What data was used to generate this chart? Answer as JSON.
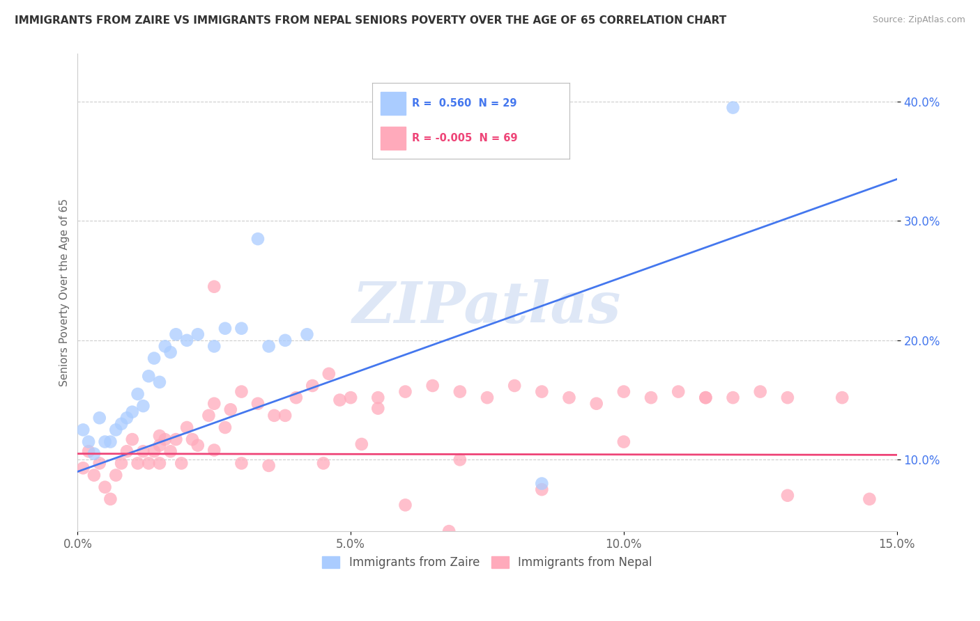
{
  "title": "IMMIGRANTS FROM ZAIRE VS IMMIGRANTS FROM NEPAL SENIORS POVERTY OVER THE AGE OF 65 CORRELATION CHART",
  "source": "Source: ZipAtlas.com",
  "ylabel": "Seniors Poverty Over the Age of 65",
  "xlim": [
    0.0,
    0.15
  ],
  "ylim": [
    0.04,
    0.44
  ],
  "yticks": [
    0.1,
    0.2,
    0.3,
    0.4
  ],
  "xticks": [
    0.0,
    0.05,
    0.1,
    0.15
  ],
  "xtick_labels": [
    "0.0%",
    "5.0%",
    "10.0%",
    "15.0%"
  ],
  "ytick_labels": [
    "10.0%",
    "20.0%",
    "30.0%",
    "40.0%"
  ],
  "zaire_R": 0.56,
  "zaire_N": 29,
  "nepal_R": -0.005,
  "nepal_N": 69,
  "zaire_color": "#aaccff",
  "nepal_color": "#ffaabb",
  "trendline_zaire_color": "#4477ee",
  "trendline_nepal_color": "#ee4477",
  "watermark": "ZIPatlas",
  "background_color": "#ffffff",
  "grid_color": "#cccccc",
  "zaire_trendline_x0": 0.0,
  "zaire_trendline_y0": 0.09,
  "zaire_trendline_x1": 0.15,
  "zaire_trendline_y1": 0.335,
  "nepal_trendline_x0": 0.0,
  "nepal_trendline_y0": 0.105,
  "nepal_trendline_x1": 0.15,
  "nepal_trendline_y1": 0.104,
  "zaire_scatter_x": [
    0.001,
    0.002,
    0.003,
    0.004,
    0.005,
    0.006,
    0.007,
    0.008,
    0.009,
    0.01,
    0.011,
    0.012,
    0.013,
    0.014,
    0.015,
    0.016,
    0.017,
    0.018,
    0.02,
    0.022,
    0.025,
    0.027,
    0.03,
    0.033,
    0.035,
    0.038,
    0.042,
    0.085,
    0.12
  ],
  "zaire_scatter_y": [
    0.125,
    0.115,
    0.105,
    0.135,
    0.115,
    0.115,
    0.125,
    0.13,
    0.135,
    0.14,
    0.155,
    0.145,
    0.17,
    0.185,
    0.165,
    0.195,
    0.19,
    0.205,
    0.2,
    0.205,
    0.195,
    0.21,
    0.21,
    0.285,
    0.195,
    0.2,
    0.205,
    0.08,
    0.395
  ],
  "nepal_scatter_x": [
    0.001,
    0.002,
    0.003,
    0.004,
    0.005,
    0.006,
    0.007,
    0.008,
    0.009,
    0.01,
    0.011,
    0.012,
    0.013,
    0.014,
    0.015,
    0.016,
    0.017,
    0.018,
    0.019,
    0.02,
    0.021,
    0.022,
    0.024,
    0.025,
    0.027,
    0.028,
    0.03,
    0.033,
    0.036,
    0.04,
    0.043,
    0.046,
    0.05,
    0.055,
    0.06,
    0.065,
    0.07,
    0.075,
    0.08,
    0.085,
    0.09,
    0.095,
    0.1,
    0.105,
    0.11,
    0.115,
    0.12,
    0.125,
    0.13,
    0.14,
    0.015,
    0.03,
    0.045,
    0.06,
    0.025,
    0.038,
    0.052,
    0.068,
    0.015,
    0.025,
    0.035,
    0.048,
    0.055,
    0.07,
    0.085,
    0.1,
    0.115,
    0.13,
    0.145
  ],
  "nepal_scatter_y": [
    0.093,
    0.107,
    0.087,
    0.097,
    0.077,
    0.067,
    0.087,
    0.097,
    0.107,
    0.117,
    0.097,
    0.107,
    0.097,
    0.107,
    0.097,
    0.117,
    0.107,
    0.117,
    0.097,
    0.127,
    0.117,
    0.112,
    0.137,
    0.147,
    0.127,
    0.142,
    0.157,
    0.147,
    0.137,
    0.152,
    0.162,
    0.172,
    0.152,
    0.152,
    0.157,
    0.162,
    0.157,
    0.152,
    0.162,
    0.157,
    0.152,
    0.147,
    0.157,
    0.152,
    0.157,
    0.152,
    0.152,
    0.157,
    0.152,
    0.152,
    0.112,
    0.097,
    0.097,
    0.062,
    0.245,
    0.137,
    0.113,
    0.04,
    0.12,
    0.108,
    0.095,
    0.15,
    0.143,
    0.1,
    0.075,
    0.115,
    0.152,
    0.07,
    0.067
  ]
}
